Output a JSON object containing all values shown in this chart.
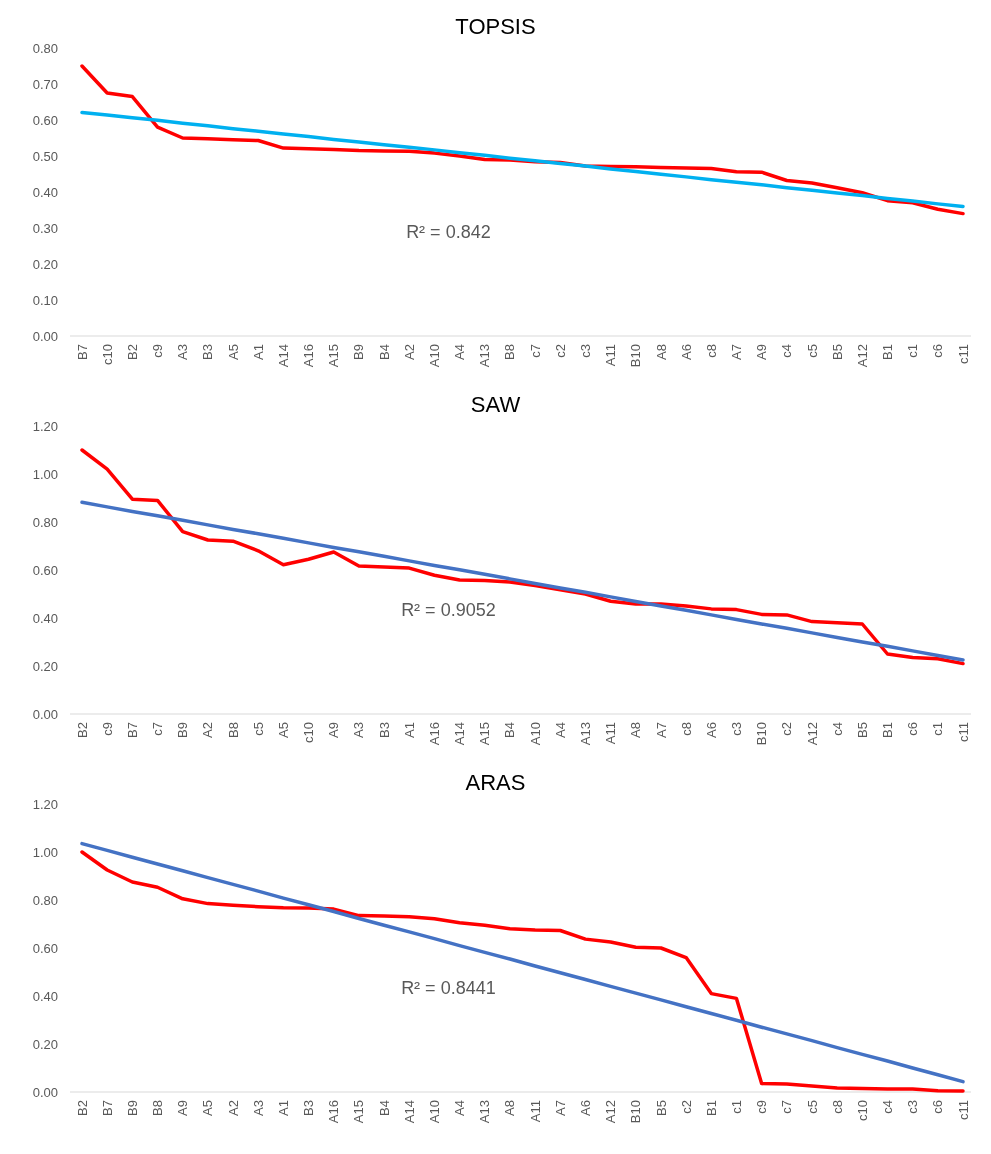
{
  "chart_data": [
    {
      "type": "line",
      "title": "TOPSIS",
      "categories": [
        "B7",
        "c10",
        "B2",
        "c9",
        "A3",
        "B3",
        "A5",
        "A1",
        "A14",
        "A16",
        "A15",
        "B9",
        "B4",
        "A2",
        "A10",
        "A4",
        "A13",
        "B8",
        "c7",
        "c2",
        "c3",
        "A11",
        "B10",
        "A8",
        "A6",
        "c8",
        "A7",
        "A9",
        "c4",
        "c5",
        "B5",
        "A12",
        "B1",
        "c1",
        "c6",
        "c11"
      ],
      "series": [
        {
          "color": "#ff0000",
          "values": [
            0.75,
            0.675,
            0.665,
            0.58,
            0.55,
            0.548,
            0.545,
            0.543,
            0.522,
            0.52,
            0.518,
            0.515,
            0.514,
            0.513,
            0.508,
            0.5,
            0.49,
            0.489,
            0.484,
            0.482,
            0.472,
            0.471,
            0.47,
            0.468,
            0.467,
            0.465,
            0.456,
            0.455,
            0.432,
            0.425,
            0.412,
            0.398,
            0.376,
            0.37,
            0.352,
            0.34
          ]
        },
        {
          "color": "#00b0f0",
          "values": [
            0.621,
            0.614,
            0.606,
            0.599,
            0.591,
            0.584,
            0.576,
            0.569,
            0.561,
            0.554,
            0.546,
            0.539,
            0.531,
            0.524,
            0.517,
            0.509,
            0.502,
            0.494,
            0.487,
            0.479,
            0.472,
            0.464,
            0.457,
            0.449,
            0.442,
            0.434,
            0.427,
            0.42,
            0.412,
            0.405,
            0.397,
            0.39,
            0.382,
            0.375,
            0.367,
            0.36
          ]
        }
      ],
      "ylim": [
        0,
        0.8
      ],
      "yticks": [
        {
          "value": 0,
          "label": "0.00"
        },
        {
          "value": 0.1,
          "label": "0.10"
        },
        {
          "value": 0.2,
          "label": "0.20"
        },
        {
          "value": 0.3,
          "label": "0.30"
        },
        {
          "value": 0.4,
          "label": "0.40"
        },
        {
          "value": 0.5,
          "label": "0.50"
        },
        {
          "value": 0.6,
          "label": "0.60"
        },
        {
          "value": 0.7,
          "label": "0.70"
        },
        {
          "value": 0.8,
          "label": "0.80"
        }
      ],
      "annotations": [
        "R² = 0.842"
      ],
      "grid": false,
      "marker": "none",
      "line_style": "solid"
    },
    {
      "type": "line",
      "title": "SAW",
      "categories": [
        "B2",
        "c9",
        "B7",
        "c7",
        "B9",
        "A2",
        "B8",
        "c5",
        "A5",
        "c10",
        "A9",
        "A3",
        "B3",
        "A1",
        "A16",
        "A14",
        "A15",
        "B4",
        "A10",
        "A4",
        "A13",
        "A11",
        "A8",
        "A7",
        "c8",
        "A6",
        "c3",
        "B10",
        "c2",
        "A12",
        "c4",
        "B5",
        "B1",
        "c6",
        "c1",
        "c11"
      ],
      "series": [
        {
          "color": "#ff0000",
          "values": [
            1.1,
            1.02,
            0.895,
            0.89,
            0.76,
            0.725,
            0.72,
            0.68,
            0.622,
            0.645,
            0.675,
            0.617,
            0.613,
            0.608,
            0.578,
            0.558,
            0.556,
            0.55,
            0.535,
            0.518,
            0.5,
            0.47,
            0.458,
            0.458,
            0.45,
            0.438,
            0.435,
            0.415,
            0.413,
            0.385,
            0.38,
            0.375,
            0.25,
            0.235,
            0.23,
            0.21
          ]
        },
        {
          "color": "#4472c4",
          "values": [
            0.882,
            0.863,
            0.844,
            0.826,
            0.807,
            0.788,
            0.769,
            0.751,
            0.732,
            0.713,
            0.694,
            0.676,
            0.657,
            0.638,
            0.619,
            0.601,
            0.582,
            0.563,
            0.544,
            0.525,
            0.507,
            0.488,
            0.469,
            0.45,
            0.432,
            0.413,
            0.394,
            0.375,
            0.357,
            0.338,
            0.319,
            0.3,
            0.282,
            0.263,
            0.244,
            0.225
          ]
        }
      ],
      "ylim": [
        0,
        1.2
      ],
      "yticks": [
        {
          "value": 0,
          "label": "0.00"
        },
        {
          "value": 0.2,
          "label": "0.20"
        },
        {
          "value": 0.4,
          "label": "0.40"
        },
        {
          "value": 0.6,
          "label": "0.60"
        },
        {
          "value": 0.8,
          "label": "0.80"
        },
        {
          "value": 1,
          "label": "1.00"
        },
        {
          "value": 1.2,
          "label": "1.20"
        }
      ],
      "annotations": [
        "R² = 0.9052"
      ],
      "grid": false,
      "marker": "none",
      "line_style": "solid"
    },
    {
      "type": "line",
      "title": "ARAS",
      "categories": [
        "B2",
        "B7",
        "B9",
        "B8",
        "A9",
        "A5",
        "A2",
        "A3",
        "A1",
        "B3",
        "A16",
        "A15",
        "B4",
        "A14",
        "A10",
        "A4",
        "A13",
        "A8",
        "A11",
        "A7",
        "A6",
        "A12",
        "B10",
        "B5",
        "c2",
        "B1",
        "c1",
        "c9",
        "c7",
        "c5",
        "c8",
        "c10",
        "c4",
        "c3",
        "c6",
        "c11"
      ],
      "series": [
        {
          "color": "#ff0000",
          "values": [
            1.0,
            0.925,
            0.875,
            0.853,
            0.805,
            0.785,
            0.778,
            0.772,
            0.768,
            0.767,
            0.762,
            0.735,
            0.733,
            0.73,
            0.722,
            0.705,
            0.695,
            0.68,
            0.675,
            0.673,
            0.637,
            0.625,
            0.603,
            0.6,
            0.56,
            0.41,
            0.39,
            0.035,
            0.033,
            0.025,
            0.017,
            0.015,
            0.012,
            0.012,
            0.005,
            0.004
          ]
        },
        {
          "color": "#4472c4",
          "values": [
            1.035,
            1.007,
            0.978,
            0.95,
            0.922,
            0.893,
            0.865,
            0.837,
            0.808,
            0.78,
            0.752,
            0.723,
            0.695,
            0.667,
            0.639,
            0.61,
            0.582,
            0.554,
            0.525,
            0.497,
            0.469,
            0.44,
            0.412,
            0.384,
            0.355,
            0.327,
            0.299,
            0.27,
            0.242,
            0.214,
            0.185,
            0.157,
            0.129,
            0.1,
            0.072,
            0.043
          ]
        }
      ],
      "ylim": [
        0,
        1.2
      ],
      "yticks": [
        {
          "value": 0,
          "label": "0.00"
        },
        {
          "value": 0.2,
          "label": "0.20"
        },
        {
          "value": 0.4,
          "label": "0.40"
        },
        {
          "value": 0.6,
          "label": "0.60"
        },
        {
          "value": 0.8,
          "label": "0.80"
        },
        {
          "value": 1,
          "label": "1.00"
        },
        {
          "value": 1.2,
          "label": "1.20"
        }
      ],
      "annotations": [
        "R² = 0.8441"
      ],
      "grid": false,
      "marker": "none",
      "line_style": "solid"
    }
  ]
}
